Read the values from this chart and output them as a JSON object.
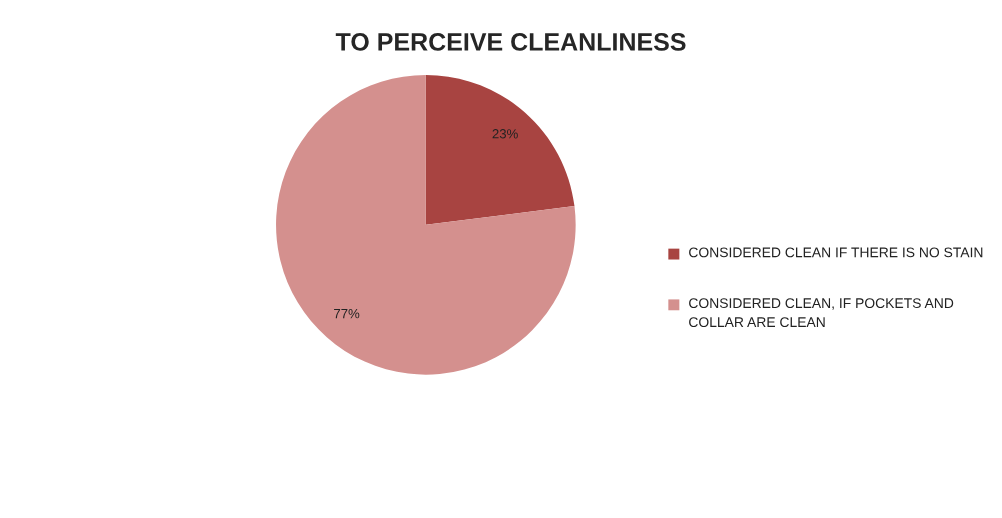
{
  "chart_data": {
    "type": "pie",
    "title": "TO PERCEIVE CLEANLINESS",
    "categories": [
      "CONSIDERED CLEAN IF THERE IS NO STAIN",
      "CONSIDERED CLEAN, IF POCKETS AND COLLAR ARE CLEAN"
    ],
    "values": [
      23,
      77
    ],
    "value_labels": [
      "23%",
      "77%"
    ],
    "colors": [
      "#a84441",
      "#d4908e"
    ],
    "legend": "right"
  }
}
